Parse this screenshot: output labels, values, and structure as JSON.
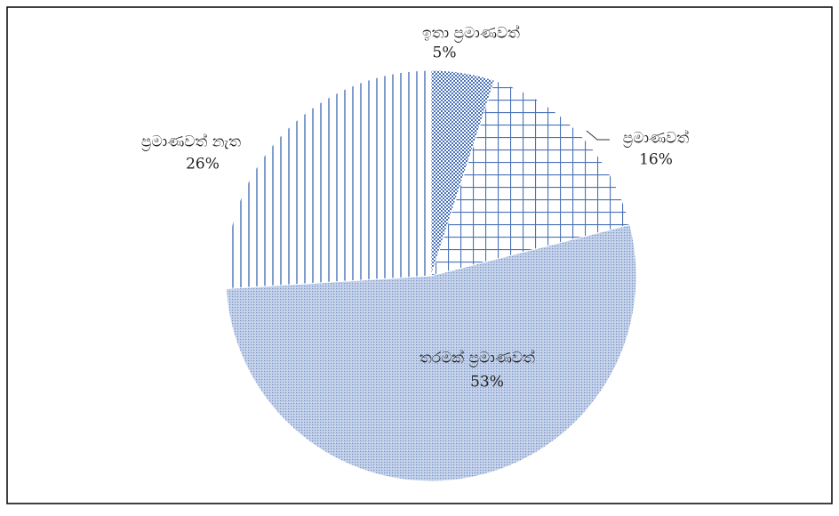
{
  "chart_data": {
    "type": "pie",
    "categories": [
      "ඉතා ප්‍රමාණවත්",
      "ප්‍රමාණවත්",
      "තරමක් ප්‍රමාණවත්",
      "ප්‍රමාණවත් නැත"
    ],
    "values": [
      5,
      16,
      53,
      26
    ],
    "value_labels": [
      "5%",
      "16%",
      "53%",
      "26%"
    ],
    "color": "#4a72b8"
  }
}
